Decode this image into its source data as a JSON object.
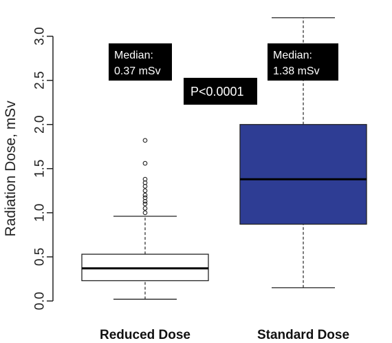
{
  "chart_data": {
    "type": "boxplot",
    "ylabel": "Radiation Dose, mSv",
    "ylim": [
      0,
      3.2
    ],
    "yticks": [
      "0.0",
      "0.5",
      "1.0",
      "1.5",
      "2.0",
      "2.5",
      "3.0"
    ],
    "categories": [
      "Reduced Dose",
      "Standard Dose"
    ],
    "boxes": [
      {
        "category": "Reduced Dose",
        "min": 0.02,
        "q1": 0.23,
        "median": 0.37,
        "q3": 0.53,
        "max": 0.96,
        "outliers": [
          1.0,
          1.05,
          1.1,
          1.13,
          1.17,
          1.2,
          1.25,
          1.3,
          1.34,
          1.38,
          1.56,
          1.82
        ],
        "fill": "#ffffff"
      },
      {
        "category": "Standard Dose",
        "min": 0.15,
        "q1": 0.87,
        "median": 1.38,
        "q3": 2.0,
        "max": 3.21,
        "outliers": [],
        "fill": "#2e3d94"
      }
    ],
    "annotations": [
      {
        "line1": "Median:",
        "line2": "0.37 mSv"
      },
      {
        "line1": "Median:",
        "line2": "1.38 mSv"
      },
      {
        "line1": "P<0.0001",
        "line2": ""
      }
    ]
  }
}
